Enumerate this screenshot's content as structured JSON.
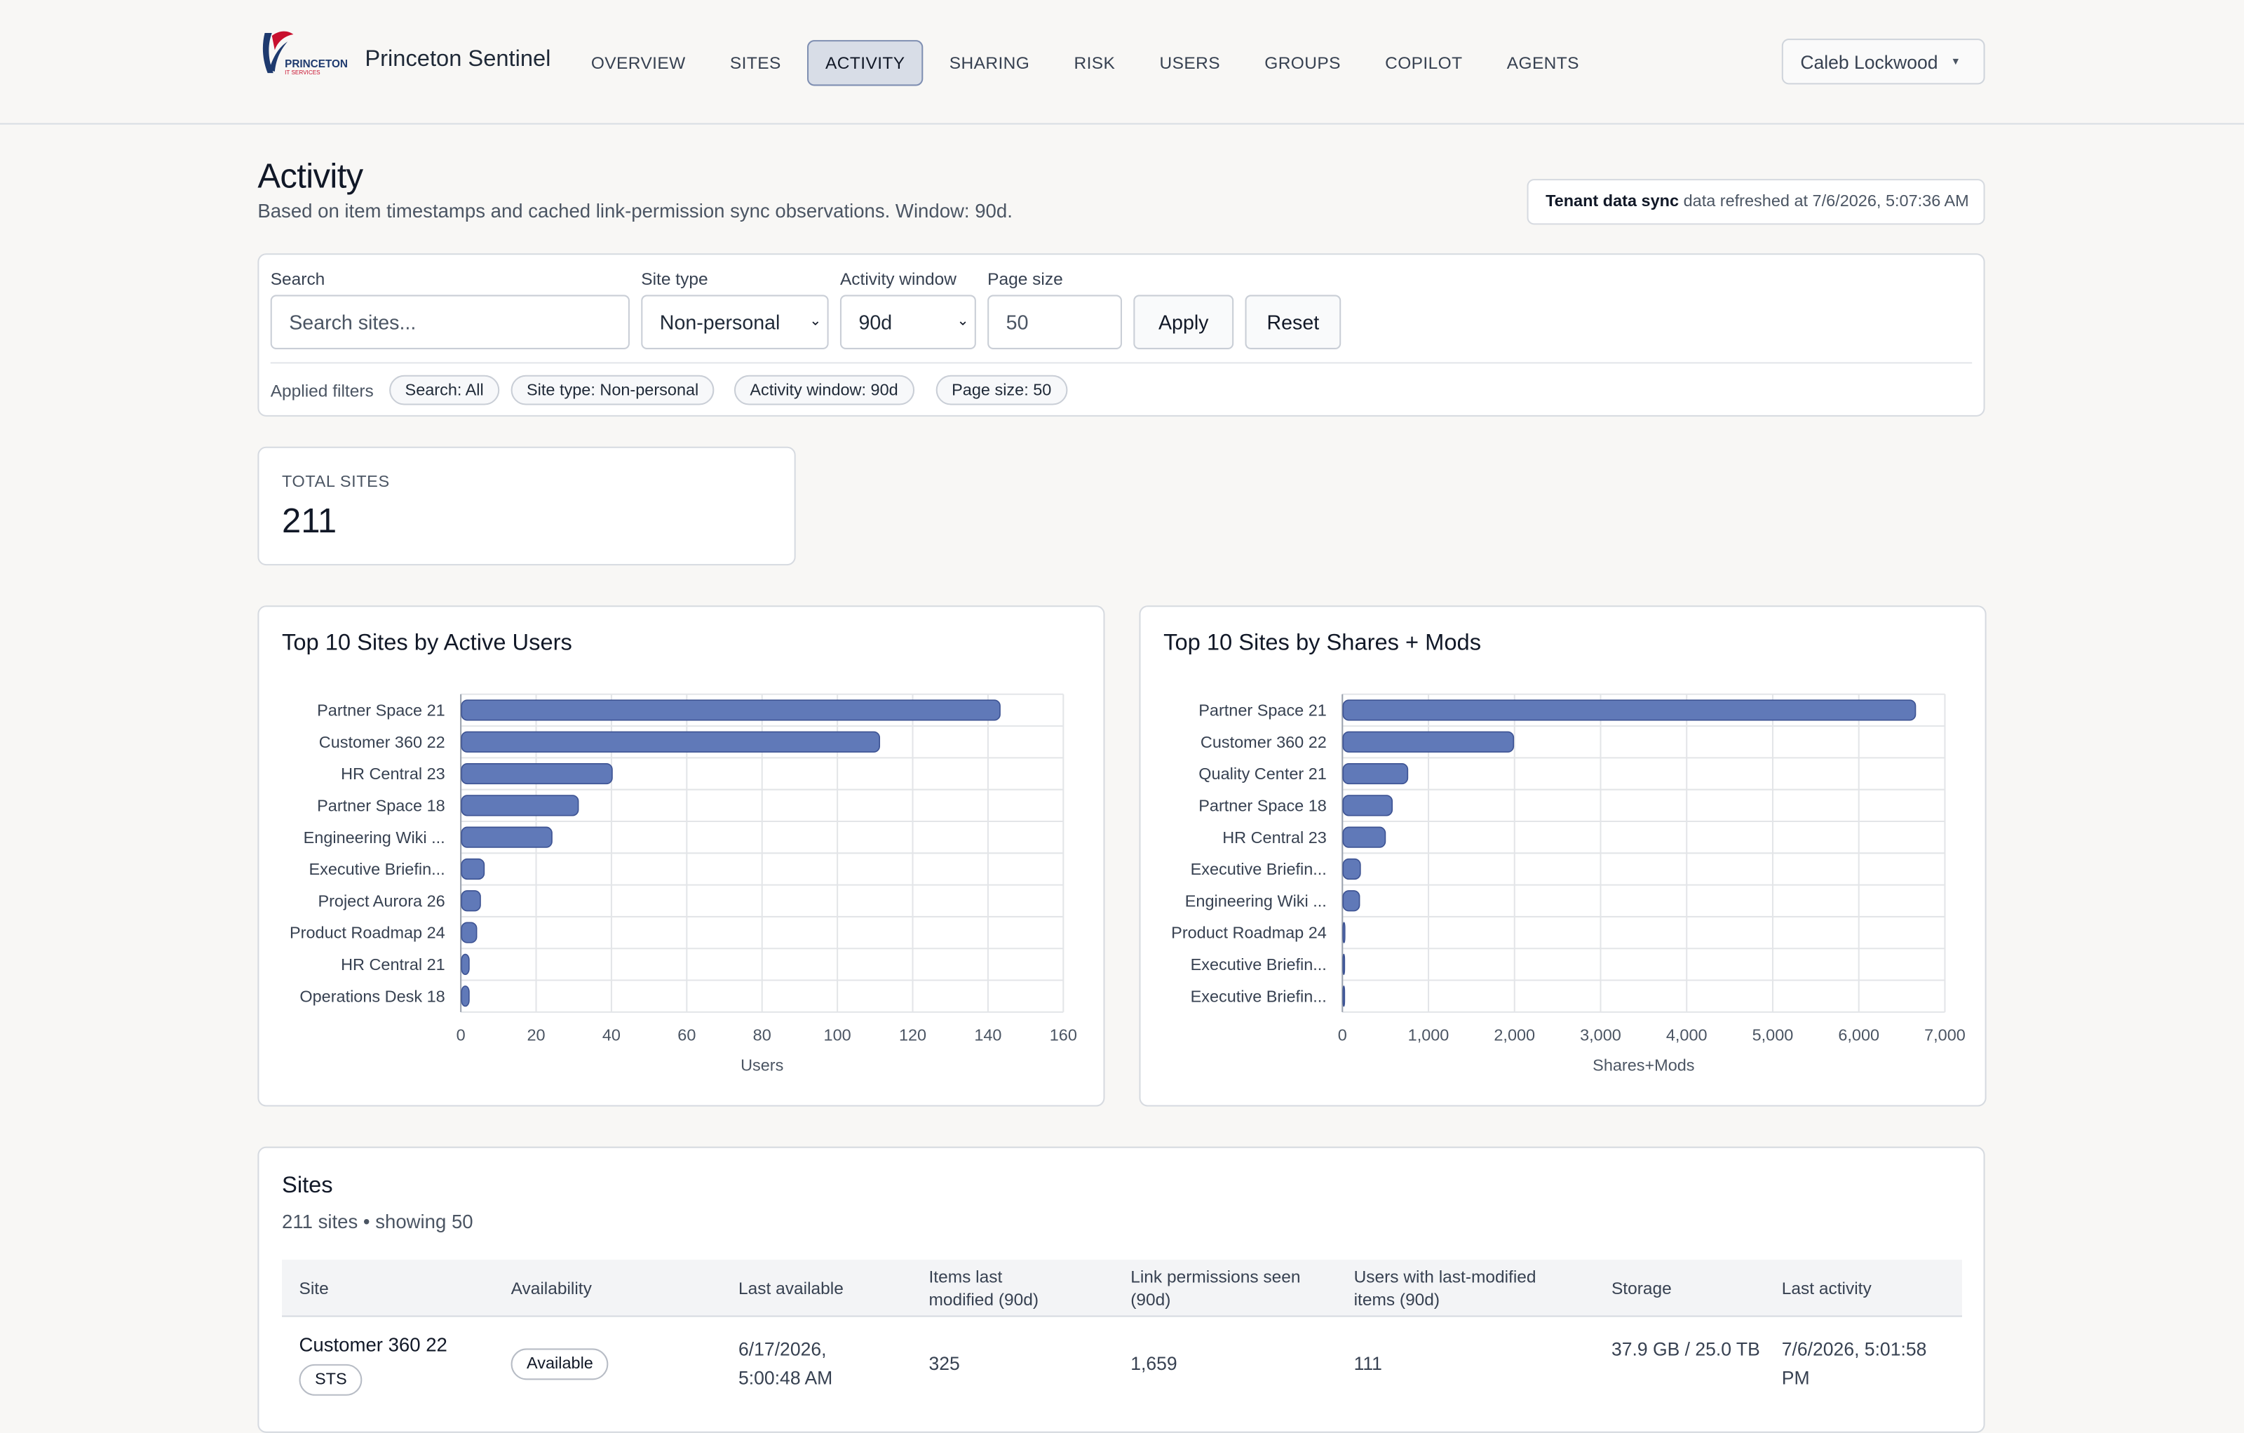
{
  "header": {
    "brand": "Princeton Sentinel",
    "logo_text": "PRINCETON",
    "logo_sub": "IT SERVICES",
    "nav": [
      "OVERVIEW",
      "SITES",
      "ACTIVITY",
      "SHARING",
      "RISK",
      "USERS",
      "GROUPS",
      "COPILOT",
      "AGENTS"
    ],
    "active_nav": "ACTIVITY",
    "user": "Caleb Lockwood"
  },
  "page": {
    "title": "Activity",
    "subtitle": "Based on item timestamps and cached link-permission sync observations. Window: 90d.",
    "sync_label": "Tenant data sync",
    "sync_text": "data refreshed at 7/6/2026, 5:07:36 AM"
  },
  "filters": {
    "search_label": "Search",
    "search_placeholder": "Search sites...",
    "site_type_label": "Site type",
    "site_type_value": "Non-personal",
    "window_label": "Activity window",
    "window_value": "90d",
    "page_size_label": "Page size",
    "page_size_value": "50",
    "apply": "Apply",
    "reset": "Reset",
    "applied_label": "Applied filters",
    "chips": [
      "Search: All",
      "Site type: Non-personal",
      "Activity window: 90d",
      "Page size: 50"
    ]
  },
  "total": {
    "label": "TOTAL SITES",
    "value": "211"
  },
  "chart_data": [
    {
      "type": "bar",
      "orientation": "horizontal",
      "title": "Top 10 Sites by Active Users",
      "xlabel": "Users",
      "ylabel": "",
      "xlim": [
        0,
        160
      ],
      "xticks": [
        "0",
        "20",
        "40",
        "60",
        "80",
        "100",
        "120",
        "140",
        "160"
      ],
      "xtick_values": [
        0,
        20,
        40,
        60,
        80,
        100,
        120,
        140,
        160
      ],
      "categories": [
        "Partner Space 21",
        "Customer 360 22",
        "HR Central 23",
        "Partner Space 18",
        "Engineering Wiki ...",
        "Executive Briefin...",
        "Project Aurora 26",
        "Product Roadmap 24",
        "HR Central 21",
        "Operations Desk 18"
      ],
      "values": [
        143,
        111,
        40,
        31,
        24,
        6,
        5,
        4,
        2,
        2
      ],
      "grid": true,
      "color": "#6079b8"
    },
    {
      "type": "bar",
      "orientation": "horizontal",
      "title": "Top 10 Sites by Shares + Mods",
      "xlabel": "Shares+Mods",
      "ylabel": "",
      "xlim": [
        0,
        7000
      ],
      "xticks": [
        "0",
        "1,000",
        "2,000",
        "3,000",
        "4,000",
        "5,000",
        "6,000",
        "7,000"
      ],
      "xtick_values": [
        0,
        1000,
        2000,
        3000,
        4000,
        5000,
        6000,
        7000
      ],
      "categories": [
        "Partner Space 21",
        "Customer 360 22",
        "Quality Center 21",
        "Partner Space 18",
        "HR Central 23",
        "Executive Briefin...",
        "Engineering Wiki ...",
        "Product Roadmap 24",
        "Executive Briefin...",
        "Executive Briefin..."
      ],
      "values": [
        6650,
        1980,
        750,
        570,
        490,
        200,
        190,
        20,
        15,
        10
      ],
      "grid": true,
      "color": "#6079b8"
    }
  ],
  "sites": {
    "title": "Sites",
    "subtitle": "211 sites • showing 50",
    "columns": [
      "Site",
      "Availability",
      "Last available",
      "Items last modified (90d)",
      "Link permissions seen (90d)",
      "Users with last-modified items (90d)",
      "Storage",
      "Last activity"
    ],
    "rows": [
      {
        "site": "Customer 360 22",
        "tag": "STS",
        "availability": "Available",
        "last_available": "6/17/2026, 5:00:48 AM",
        "items_modified": "325",
        "link_permissions": "1,659",
        "users": "111",
        "storage": "37.9 GB / 25.0 TB",
        "last_activity": "7/6/2026, 5:01:58 PM"
      }
    ]
  }
}
